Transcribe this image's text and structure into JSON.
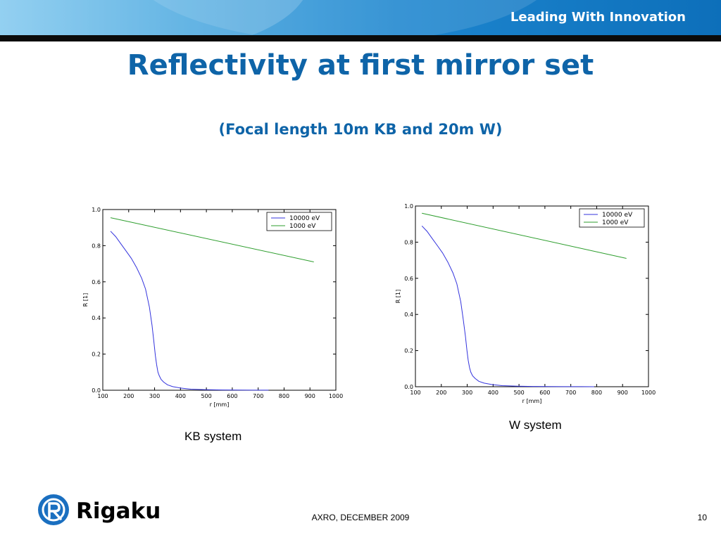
{
  "header": {
    "tagline": "Leading With Innovation"
  },
  "slide": {
    "title": "Reflectivity at first mirror set",
    "subtitle": "(Focal length 10m KB and 20m W)"
  },
  "captions": {
    "kb": "KB system",
    "w": "W system"
  },
  "footer": {
    "center": "AXRO, DECEMBER 2009",
    "page": "10"
  },
  "logo": {
    "text": "Rigaku",
    "mark": "R"
  },
  "colors": {
    "brand": "#0e64a8",
    "series_10000": "#3333dd",
    "series_1000": "#2e9e2e"
  },
  "chart_data": [
    {
      "type": "line",
      "xlabel": "r [mm]",
      "ylabel": "R [1]",
      "xlim": [
        100,
        1000
      ],
      "ylim": [
        0.0,
        1.0
      ],
      "xticks": [
        "100",
        "200",
        "300",
        "400",
        "500",
        "600",
        "700",
        "800",
        "900",
        "1000"
      ],
      "yticks": [
        "0.0",
        "0.2",
        "0.4",
        "0.6",
        "0.8",
        "1.0"
      ],
      "legend": "top-right",
      "grid": false,
      "series": [
        {
          "name": "10000 eV",
          "x": [
            130,
            150,
            170,
            190,
            210,
            230,
            250,
            265,
            280,
            290,
            297,
            303,
            308,
            313,
            318,
            325,
            335,
            350,
            370,
            400,
            440,
            500,
            560,
            620,
            680,
            740
          ],
          "y": [
            0.88,
            0.85,
            0.81,
            0.77,
            0.73,
            0.68,
            0.62,
            0.56,
            0.46,
            0.36,
            0.27,
            0.19,
            0.14,
            0.1,
            0.08,
            0.06,
            0.045,
            0.03,
            0.02,
            0.012,
            0.006,
            0.003,
            0.0015,
            0.001,
            0.0005,
            0.0002
          ]
        },
        {
          "name": "1000 eV",
          "x": [
            130,
            915
          ],
          "y": [
            0.955,
            0.71
          ]
        }
      ]
    },
    {
      "type": "line",
      "xlabel": "r [mm]",
      "ylabel": "R [1]",
      "xlim": [
        100,
        1000
      ],
      "ylim": [
        0.0,
        1.0
      ],
      "xticks": [
        "100",
        "200",
        "300",
        "400",
        "500",
        "600",
        "700",
        "800",
        "900",
        "1000"
      ],
      "yticks": [
        "0.0",
        "0.2",
        "0.4",
        "0.6",
        "0.8",
        "1.0"
      ],
      "legend": "top-right",
      "grid": false,
      "series": [
        {
          "name": "10000 eV",
          "x": [
            125,
            145,
            165,
            185,
            205,
            225,
            245,
            260,
            275,
            285,
            293,
            299,
            304,
            309,
            314,
            321,
            331,
            345,
            365,
            395,
            435,
            495,
            555,
            615,
            675,
            740,
            790
          ],
          "y": [
            0.89,
            0.86,
            0.82,
            0.78,
            0.74,
            0.69,
            0.63,
            0.57,
            0.47,
            0.37,
            0.28,
            0.2,
            0.145,
            0.105,
            0.08,
            0.06,
            0.045,
            0.03,
            0.02,
            0.012,
            0.006,
            0.003,
            0.0015,
            0.001,
            0.0005,
            0.0002,
            0.0001
          ]
        },
        {
          "name": "1000 eV",
          "x": [
            125,
            915
          ],
          "y": [
            0.96,
            0.71
          ]
        }
      ]
    }
  ]
}
